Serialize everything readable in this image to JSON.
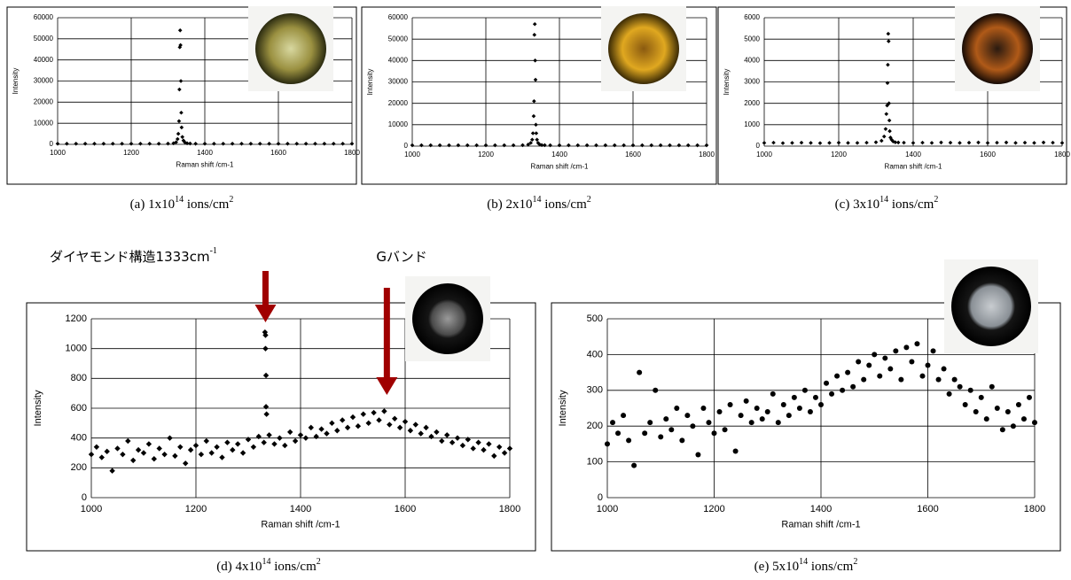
{
  "chart_data": [
    {
      "type": "scatter",
      "marker": "diamond",
      "color": "#000000",
      "grid": true,
      "x_label": "Raman shift /cm-1",
      "y_label": "Intensity",
      "caption": {
        "text": "(a) 1x10",
        "sup": "14",
        "text2": " ions/cm",
        "sup2": "2"
      },
      "xlim": [
        1000,
        1800
      ],
      "xticks": [
        1000,
        1200,
        1400,
        1600,
        1800
      ],
      "ylim": [
        0,
        60000
      ],
      "yticks": [
        0,
        10000,
        20000,
        30000,
        40000,
        50000,
        60000
      ],
      "x": [
        1000,
        1025,
        1050,
        1075,
        1100,
        1125,
        1150,
        1175,
        1200,
        1225,
        1250,
        1275,
        1300,
        1315,
        1322,
        1326,
        1328,
        1330,
        1331,
        1332,
        1333,
        1334,
        1335,
        1336,
        1337,
        1339,
        1342,
        1346,
        1352,
        1360,
        1375,
        1400,
        1425,
        1450,
        1475,
        1500,
        1525,
        1550,
        1575,
        1600,
        1625,
        1650,
        1675,
        1700,
        1725,
        1750,
        1775,
        1800
      ],
      "values": [
        300,
        300,
        300,
        300,
        300,
        300,
        300,
        300,
        300,
        300,
        300,
        300,
        350,
        500,
        1000,
        2500,
        5000,
        11000,
        26000,
        46000,
        54000,
        47000,
        30000,
        15000,
        8000,
        3500,
        1800,
        900,
        500,
        400,
        300,
        300,
        300,
        300,
        300,
        300,
        300,
        300,
        300,
        300,
        300,
        300,
        300,
        300,
        300,
        300,
        300,
        300
      ]
    },
    {
      "type": "scatter",
      "marker": "diamond",
      "color": "#000000",
      "grid": true,
      "x_label": "Raman shift /cm-1",
      "y_label": "Intensity",
      "caption": {
        "text": "(b) 2x10",
        "sup": "14",
        "text2": " ions/cm",
        "sup2": "2"
      },
      "xlim": [
        1000,
        1800
      ],
      "xticks": [
        1000,
        1200,
        1400,
        1600,
        1800
      ],
      "ylim": [
        0,
        60000
      ],
      "yticks": [
        0,
        10000,
        20000,
        30000,
        40000,
        50000,
        60000
      ],
      "x": [
        1000,
        1025,
        1050,
        1075,
        1100,
        1125,
        1150,
        1175,
        1200,
        1225,
        1250,
        1275,
        1300,
        1315,
        1322,
        1326,
        1328,
        1330,
        1331,
        1332,
        1333,
        1334,
        1335,
        1336,
        1337,
        1339,
        1342,
        1346,
        1352,
        1360,
        1375,
        1400,
        1425,
        1450,
        1475,
        1500,
        1525,
        1550,
        1575,
        1600,
        1625,
        1650,
        1675,
        1700,
        1725,
        1750,
        1775,
        1800
      ],
      "values": [
        400,
        400,
        400,
        400,
        400,
        400,
        400,
        400,
        400,
        400,
        400,
        400,
        450,
        700,
        1500,
        3000,
        6000,
        14000,
        21000,
        52000,
        57000,
        40000,
        31000,
        10000,
        6000,
        3000,
        1500,
        800,
        500,
        450,
        400,
        400,
        400,
        400,
        400,
        400,
        400,
        400,
        400,
        400,
        400,
        400,
        400,
        400,
        400,
        400,
        400,
        400
      ]
    },
    {
      "type": "scatter",
      "marker": "diamond",
      "color": "#000000",
      "grid": true,
      "x_label": "Raman shift /cm-1",
      "y_label": "Intensity",
      "caption": {
        "text": "(c) 3x10",
        "sup": "14",
        "text2": " ions/cm",
        "sup2": "2"
      },
      "xlim": [
        1000,
        1800
      ],
      "xticks": [
        1000,
        1200,
        1400,
        1600,
        1800
      ],
      "ylim": [
        0,
        6000
      ],
      "yticks": [
        0,
        1000,
        2000,
        3000,
        4000,
        5000,
        6000
      ],
      "x": [
        1000,
        1025,
        1050,
        1075,
        1100,
        1125,
        1150,
        1175,
        1200,
        1225,
        1250,
        1275,
        1300,
        1315,
        1322,
        1326,
        1328,
        1330,
        1331,
        1332,
        1333,
        1334,
        1335,
        1336,
        1337,
        1339,
        1342,
        1346,
        1352,
        1360,
        1375,
        1400,
        1425,
        1450,
        1475,
        1500,
        1525,
        1550,
        1575,
        1600,
        1625,
        1650,
        1675,
        1700,
        1725,
        1750,
        1775,
        1800
      ],
      "values": [
        150,
        160,
        140,
        150,
        160,
        150,
        140,
        150,
        160,
        150,
        150,
        160,
        180,
        250,
        450,
        800,
        1500,
        1900,
        2950,
        3800,
        5250,
        4900,
        2000,
        1200,
        700,
        400,
        300,
        220,
        180,
        170,
        160,
        150,
        160,
        150,
        170,
        160,
        150,
        160,
        170,
        150,
        160,
        170,
        150,
        160,
        150,
        170,
        160,
        150
      ]
    },
    {
      "type": "scatter",
      "marker": "diamond",
      "color": "#000000",
      "grid": true,
      "x_label": "Raman shift /cm-1",
      "y_label": "Intensity",
      "caption": {
        "text": "(d) 4x10",
        "sup": "14",
        "text2": " ions/cm",
        "sup2": "2"
      },
      "annotations": [
        {
          "text": "ダイヤモンド構造1333cm",
          "sup": "-1",
          "x": 1333
        },
        {
          "text": "Gバンド",
          "x": 1565
        }
      ],
      "xlim": [
        1000,
        1800
      ],
      "xticks": [
        1000,
        1200,
        1400,
        1600,
        1800
      ],
      "ylim": [
        0,
        1200
      ],
      "yticks": [
        0,
        200,
        400,
        600,
        800,
        1000,
        1200
      ],
      "x": [
        1000,
        1010,
        1020,
        1030,
        1040,
        1050,
        1060,
        1070,
        1080,
        1090,
        1100,
        1110,
        1120,
        1130,
        1140,
        1150,
        1160,
        1170,
        1180,
        1190,
        1200,
        1210,
        1220,
        1230,
        1240,
        1250,
        1260,
        1270,
        1280,
        1290,
        1300,
        1310,
        1320,
        1330,
        1340,
        1350,
        1360,
        1370,
        1380,
        1390,
        1400,
        1410,
        1420,
        1430,
        1440,
        1450,
        1460,
        1470,
        1480,
        1490,
        1500,
        1510,
        1520,
        1530,
        1540,
        1550,
        1560,
        1570,
        1580,
        1590,
        1600,
        1610,
        1620,
        1630,
        1640,
        1650,
        1660,
        1670,
        1680,
        1690,
        1700,
        1710,
        1720,
        1730,
        1740,
        1750,
        1760,
        1770,
        1780,
        1790,
        1800,
        1332,
        1333,
        1333,
        1334,
        1334,
        1335
      ],
      "values": [
        290,
        340,
        270,
        310,
        180,
        330,
        290,
        380,
        250,
        320,
        300,
        360,
        260,
        330,
        290,
        400,
        280,
        340,
        230,
        320,
        350,
        290,
        380,
        300,
        340,
        270,
        370,
        320,
        360,
        300,
        390,
        340,
        410,
        370,
        420,
        360,
        400,
        350,
        440,
        380,
        420,
        400,
        470,
        410,
        460,
        430,
        500,
        450,
        520,
        470,
        540,
        480,
        560,
        500,
        570,
        520,
        580,
        490,
        530,
        470,
        510,
        450,
        490,
        430,
        470,
        410,
        440,
        380,
        420,
        370,
        400,
        350,
        390,
        330,
        370,
        320,
        360,
        280,
        340,
        300,
        330,
        1110,
        1090,
        1000,
        820,
        610,
        560
      ]
    },
    {
      "type": "scatter",
      "marker": "circle",
      "color": "#000000",
      "grid": true,
      "x_label": "Raman shift /cm-1",
      "y_label": "Intensity",
      "caption": {
        "text": "(e) 5x10",
        "sup": "14",
        "text2": " ions/cm",
        "sup2": "2"
      },
      "xlim": [
        1000,
        1800
      ],
      "xticks": [
        1000,
        1200,
        1400,
        1600,
        1800
      ],
      "ylim": [
        0,
        500
      ],
      "yticks": [
        0,
        100,
        200,
        300,
        400,
        500
      ],
      "x": [
        1000,
        1010,
        1020,
        1030,
        1040,
        1050,
        1060,
        1070,
        1080,
        1090,
        1100,
        1110,
        1120,
        1130,
        1140,
        1150,
        1160,
        1170,
        1180,
        1190,
        1200,
        1210,
        1220,
        1230,
        1240,
        1250,
        1260,
        1270,
        1280,
        1290,
        1300,
        1310,
        1320,
        1330,
        1340,
        1350,
        1360,
        1370,
        1380,
        1390,
        1400,
        1410,
        1420,
        1430,
        1440,
        1450,
        1460,
        1470,
        1480,
        1490,
        1500,
        1510,
        1520,
        1530,
        1540,
        1550,
        1560,
        1570,
        1580,
        1590,
        1600,
        1610,
        1620,
        1630,
        1640,
        1650,
        1660,
        1670,
        1680,
        1690,
        1700,
        1710,
        1720,
        1730,
        1740,
        1750,
        1760,
        1770,
        1780,
        1790,
        1800
      ],
      "values": [
        150,
        210,
        180,
        230,
        160,
        90,
        350,
        180,
        210,
        300,
        170,
        220,
        190,
        250,
        160,
        230,
        200,
        120,
        250,
        210,
        180,
        240,
        190,
        260,
        130,
        230,
        270,
        210,
        250,
        220,
        240,
        290,
        210,
        260,
        230,
        280,
        250,
        300,
        240,
        280,
        260,
        320,
        290,
        340,
        300,
        350,
        310,
        380,
        330,
        370,
        400,
        340,
        390,
        360,
        410,
        330,
        420,
        380,
        430,
        340,
        370,
        410,
        330,
        360,
        290,
        330,
        310,
        260,
        300,
        240,
        280,
        220,
        310,
        250,
        190,
        240,
        200,
        260,
        220,
        280,
        210
      ]
    }
  ]
}
